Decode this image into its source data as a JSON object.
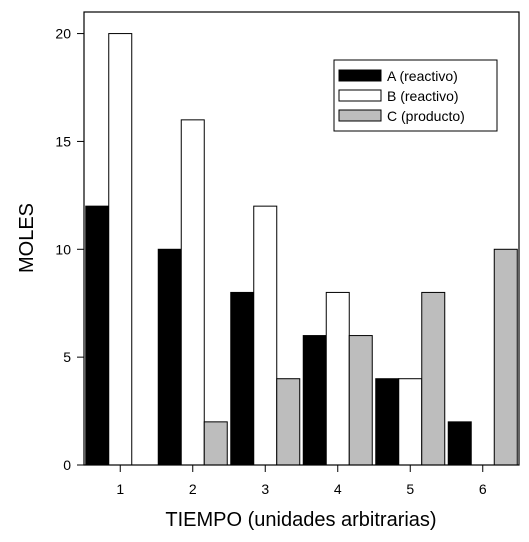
{
  "chart_data": {
    "type": "bar",
    "title": "",
    "xlabel": "TIEMPO (unidades arbitrarias)",
    "ylabel": "MOLES",
    "categories": [
      "1",
      "2",
      "3",
      "4",
      "5",
      "6"
    ],
    "ylim": [
      0,
      21
    ],
    "yticks": [
      0,
      5,
      10,
      15,
      20
    ],
    "grid": false,
    "legend_position": "top-right",
    "series": [
      {
        "name": "A (reactivo)",
        "values": [
          12,
          10,
          8,
          6,
          4,
          2
        ],
        "color": "#000000"
      },
      {
        "name": "B (reactivo)",
        "values": [
          20,
          16,
          12,
          8,
          4,
          0
        ],
        "color": "#ffffff"
      },
      {
        "name": "C (producto)",
        "values": [
          0,
          2,
          4,
          6,
          8,
          10
        ],
        "color": "#bdbdbd"
      }
    ]
  }
}
